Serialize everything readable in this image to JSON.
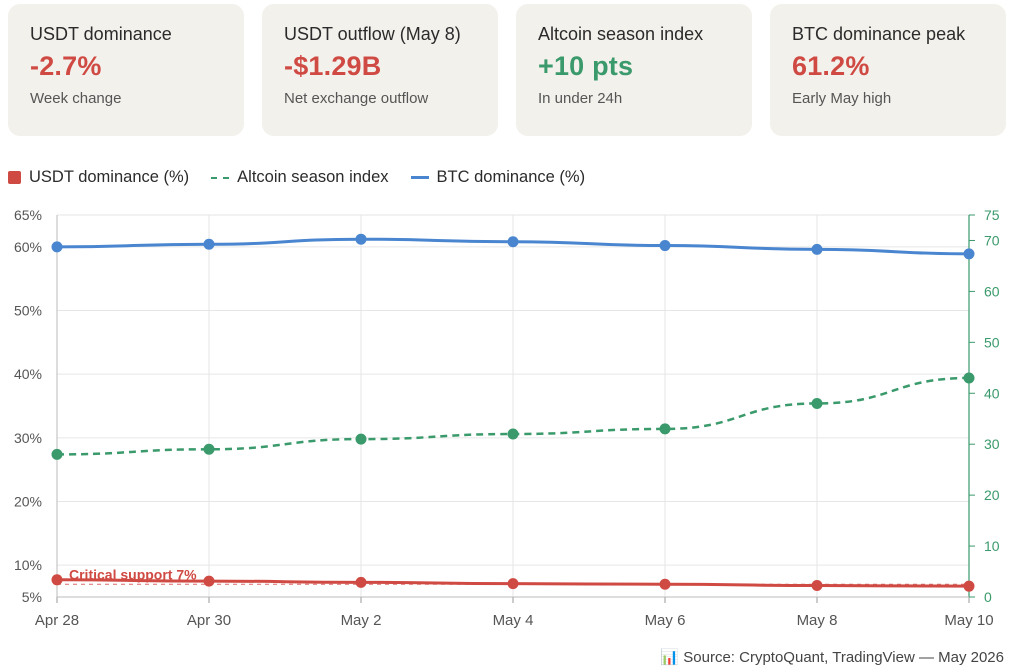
{
  "cards": [
    {
      "label": "USDT dominance",
      "value": "-2.7%",
      "sub": "Week change",
      "color": "#d04a44"
    },
    {
      "label": "USDT outflow (May 8)",
      "value": "-$1.29B",
      "sub": "Net exchange outflow",
      "color": "#d04a44"
    },
    {
      "label": "Altcoin season index",
      "value": "+10 pts",
      "sub": "In under 24h",
      "color": "#3a9a6b"
    },
    {
      "label": "BTC dominance peak",
      "value": "61.2%",
      "sub": "Early May high",
      "color": "#d04a44"
    }
  ],
  "legend": [
    {
      "label": "USDT dominance (%)",
      "color": "#d04a44",
      "style": "square"
    },
    {
      "label": "Altcoin season index",
      "color": "#3a9a6b",
      "style": "dash"
    },
    {
      "label": "BTC dominance (%)",
      "color": "#4a86d0",
      "style": "line"
    }
  ],
  "source": "📊 Source: CryptoQuant, TradingView — May 2026",
  "chart_data": {
    "type": "line",
    "categories": [
      "Apr 28",
      "Apr 30",
      "May 2",
      "May 4",
      "May 6",
      "May 8",
      "May 10"
    ],
    "left_axis": {
      "range": [
        5,
        65
      ],
      "ticks": [
        5,
        10,
        20,
        30,
        40,
        50,
        60,
        65
      ],
      "tick_labels": [
        "5%",
        "10%",
        "20%",
        "30%",
        "40%",
        "50%",
        "60%",
        "65%"
      ]
    },
    "right_axis": {
      "range": [
        0,
        75
      ],
      "ticks": [
        0,
        10,
        20,
        30,
        40,
        50,
        60,
        70,
        75
      ],
      "tick_labels": [
        "0",
        "10",
        "20",
        "30",
        "40",
        "50",
        "60",
        "70",
        "75"
      ],
      "color": "#3a9a6b"
    },
    "series": [
      {
        "name": "BTC dominance (%)",
        "axis": "left",
        "color": "#4a86d0",
        "dashed": false,
        "values": [
          60.0,
          60.4,
          61.2,
          60.8,
          60.2,
          59.6,
          58.9
        ]
      },
      {
        "name": "Altcoin season index",
        "axis": "right",
        "color": "#3a9a6b",
        "dashed": true,
        "values": [
          28,
          29,
          31,
          32,
          33,
          38,
          43
        ]
      },
      {
        "name": "USDT dominance (%)",
        "axis": "left",
        "color": "#d04a44",
        "dashed": false,
        "values": [
          7.7,
          7.5,
          7.3,
          7.1,
          7.0,
          6.8,
          6.7
        ]
      }
    ],
    "reference_line": {
      "value": 7,
      "axis": "left",
      "label": "Critical support 7%",
      "color": "#d04a44"
    },
    "grid": true
  }
}
